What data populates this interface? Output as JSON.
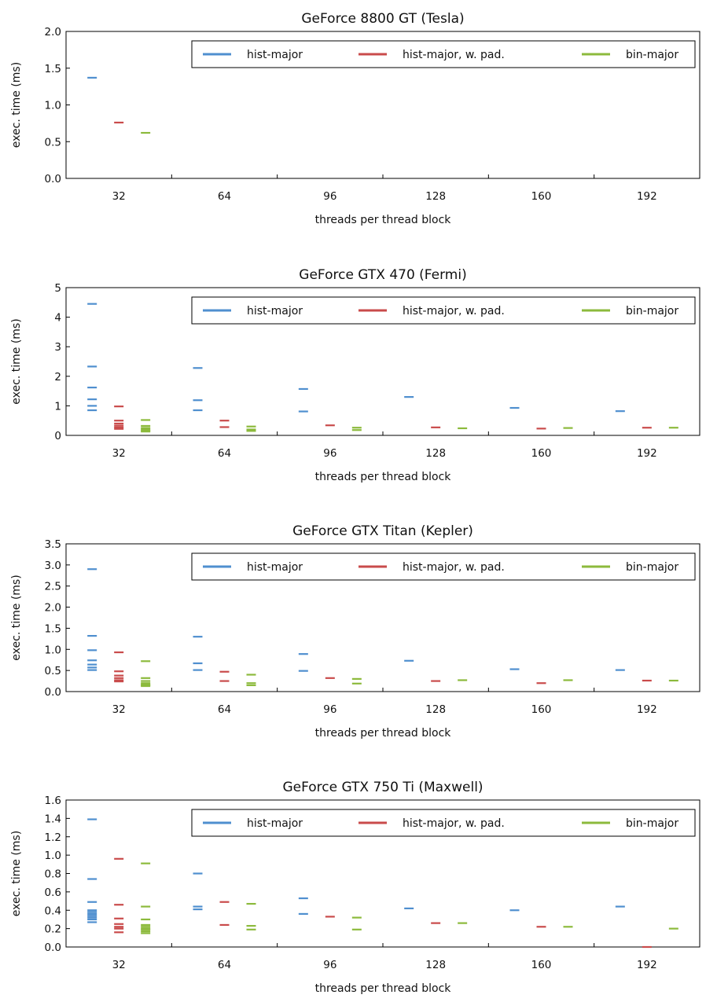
{
  "chart_data": [
    {
      "type": "scatter",
      "title": "GeForce 8800 GT (Tesla)",
      "xlabel": "threads per thread block",
      "ylabel": "exec. time (ms)",
      "x_ticks": [
        "32",
        "64",
        "96",
        "128",
        "160",
        "192"
      ],
      "ylim": [
        0,
        2.0
      ],
      "y_ticks": [
        "0.0",
        "0.5",
        "1.0",
        "1.5",
        "2.0"
      ],
      "grid": false,
      "legend_position": "top-right",
      "series": [
        {
          "name": "hist-major",
          "color": "#4f8fcf",
          "points": [
            [
              32,
              1.37
            ]
          ]
        },
        {
          "name": "hist-major, w. pad.",
          "color": "#c94b4b",
          "points": [
            [
              32,
              0.76
            ]
          ]
        },
        {
          "name": "bin-major",
          "color": "#8cba3c",
          "points": [
            [
              32,
              0.62
            ]
          ]
        }
      ]
    },
    {
      "type": "scatter",
      "title": "GeForce GTX 470 (Fermi)",
      "xlabel": "threads per thread block",
      "ylabel": "exec. time (ms)",
      "x_ticks": [
        "32",
        "64",
        "96",
        "128",
        "160",
        "192"
      ],
      "ylim": [
        0,
        5
      ],
      "y_ticks": [
        "0",
        "1",
        "2",
        "3",
        "4",
        "5"
      ],
      "grid": false,
      "legend_position": "top-right",
      "series": [
        {
          "name": "hist-major",
          "color": "#4f8fcf",
          "points": [
            [
              32,
              4.45
            ],
            [
              32,
              2.33
            ],
            [
              32,
              1.62
            ],
            [
              32,
              1.22
            ],
            [
              32,
              1.0
            ],
            [
              32,
              0.85
            ],
            [
              64,
              2.28
            ],
            [
              64,
              1.19
            ],
            [
              64,
              0.85
            ],
            [
              96,
              1.57
            ],
            [
              96,
              0.81
            ],
            [
              128,
              1.3
            ],
            [
              160,
              0.93
            ],
            [
              192,
              0.82
            ]
          ]
        },
        {
          "name": "hist-major, w. pad.",
          "color": "#c94b4b",
          "points": [
            [
              32,
              0.98
            ],
            [
              32,
              0.5
            ],
            [
              32,
              0.4
            ],
            [
              32,
              0.33
            ],
            [
              32,
              0.27
            ],
            [
              32,
              0.22
            ],
            [
              64,
              0.5
            ],
            [
              64,
              0.28
            ],
            [
              96,
              0.34
            ],
            [
              128,
              0.27
            ],
            [
              160,
              0.23
            ],
            [
              192,
              0.26
            ]
          ]
        },
        {
          "name": "bin-major",
          "color": "#8cba3c",
          "points": [
            [
              32,
              0.52
            ],
            [
              32,
              0.32
            ],
            [
              32,
              0.25
            ],
            [
              32,
              0.2
            ],
            [
              32,
              0.16
            ],
            [
              32,
              0.13
            ],
            [
              64,
              0.3
            ],
            [
              64,
              0.2
            ],
            [
              64,
              0.15
            ],
            [
              96,
              0.26
            ],
            [
              96,
              0.18
            ],
            [
              128,
              0.24
            ],
            [
              160,
              0.25
            ],
            [
              192,
              0.26
            ]
          ]
        }
      ]
    },
    {
      "type": "scatter",
      "title": "GeForce GTX Titan (Kepler)",
      "xlabel": "threads per thread block",
      "ylabel": "exec. time (ms)",
      "x_ticks": [
        "32",
        "64",
        "96",
        "128",
        "160",
        "192"
      ],
      "ylim": [
        0,
        3.5
      ],
      "y_ticks": [
        "0.0",
        "0.5",
        "1.0",
        "1.5",
        "2.0",
        "2.5",
        "3.0",
        "3.5"
      ],
      "grid": false,
      "legend_position": "top-right",
      "series": [
        {
          "name": "hist-major",
          "color": "#4f8fcf",
          "points": [
            [
              32,
              2.9
            ],
            [
              32,
              1.32
            ],
            [
              32,
              0.98
            ],
            [
              32,
              0.74
            ],
            [
              32,
              0.64
            ],
            [
              32,
              0.57
            ],
            [
              32,
              0.51
            ],
            [
              64,
              1.3
            ],
            [
              64,
              0.67
            ],
            [
              64,
              0.51
            ],
            [
              96,
              0.89
            ],
            [
              96,
              0.49
            ],
            [
              128,
              0.73
            ],
            [
              160,
              0.53
            ],
            [
              192,
              0.51
            ]
          ]
        },
        {
          "name": "hist-major, w. pad.",
          "color": "#c94b4b",
          "points": [
            [
              32,
              0.93
            ],
            [
              32,
              0.48
            ],
            [
              32,
              0.38
            ],
            [
              32,
              0.32
            ],
            [
              32,
              0.27
            ],
            [
              32,
              0.24
            ],
            [
              64,
              0.47
            ],
            [
              64,
              0.25
            ],
            [
              96,
              0.32
            ],
            [
              128,
              0.25
            ],
            [
              160,
              0.2
            ],
            [
              192,
              0.26
            ]
          ]
        },
        {
          "name": "bin-major",
          "color": "#8cba3c",
          "points": [
            [
              32,
              0.72
            ],
            [
              32,
              0.32
            ],
            [
              32,
              0.25
            ],
            [
              32,
              0.2
            ],
            [
              32,
              0.17
            ],
            [
              32,
              0.15
            ],
            [
              32,
              0.13
            ],
            [
              64,
              0.4
            ],
            [
              64,
              0.2
            ],
            [
              64,
              0.15
            ],
            [
              96,
              0.3
            ],
            [
              96,
              0.19
            ],
            [
              128,
              0.27
            ],
            [
              160,
              0.27
            ],
            [
              192,
              0.26
            ]
          ]
        }
      ]
    },
    {
      "type": "scatter",
      "title": "GeForce GTX 750 Ti (Maxwell)",
      "xlabel": "threads per thread block",
      "ylabel": "exec. time (ms)",
      "x_ticks": [
        "32",
        "64",
        "96",
        "128",
        "160",
        "192"
      ],
      "ylim": [
        0,
        1.6
      ],
      "y_ticks": [
        "0.0",
        "0.2",
        "0.4",
        "0.6",
        "0.8",
        "1.0",
        "1.2",
        "1.4",
        "1.6"
      ],
      "grid": false,
      "legend_position": "top-right",
      "series": [
        {
          "name": "hist-major",
          "color": "#4f8fcf",
          "points": [
            [
              32,
              1.39
            ],
            [
              32,
              0.74
            ],
            [
              32,
              0.49
            ],
            [
              32,
              0.4
            ],
            [
              32,
              0.38
            ],
            [
              32,
              0.36
            ],
            [
              32,
              0.34
            ],
            [
              32,
              0.32
            ],
            [
              32,
              0.3
            ],
            [
              32,
              0.27
            ],
            [
              64,
              0.8
            ],
            [
              64,
              0.44
            ],
            [
              64,
              0.41
            ],
            [
              96,
              0.53
            ],
            [
              96,
              0.36
            ],
            [
              128,
              0.42
            ],
            [
              160,
              0.4
            ],
            [
              192,
              0.44
            ]
          ]
        },
        {
          "name": "hist-major, w. pad.",
          "color": "#c94b4b",
          "points": [
            [
              32,
              0.96
            ],
            [
              32,
              0.46
            ],
            [
              32,
              0.31
            ],
            [
              32,
              0.25
            ],
            [
              32,
              0.22
            ],
            [
              32,
              0.2
            ],
            [
              32,
              0.16
            ],
            [
              64,
              0.49
            ],
            [
              64,
              0.24
            ],
            [
              96,
              0.33
            ],
            [
              128,
              0.26
            ],
            [
              160,
              0.22
            ],
            [
              192,
              0.0
            ]
          ]
        },
        {
          "name": "bin-major",
          "color": "#8cba3c",
          "points": [
            [
              32,
              0.91
            ],
            [
              32,
              0.44
            ],
            [
              32,
              0.3
            ],
            [
              32,
              0.24
            ],
            [
              32,
              0.22
            ],
            [
              32,
              0.2
            ],
            [
              32,
              0.19
            ],
            [
              32,
              0.17
            ],
            [
              32,
              0.15
            ],
            [
              64,
              0.47
            ],
            [
              64,
              0.23
            ],
            [
              64,
              0.19
            ],
            [
              96,
              0.32
            ],
            [
              96,
              0.19
            ],
            [
              128,
              0.26
            ],
            [
              160,
              0.22
            ],
            [
              192,
              0.2
            ]
          ]
        }
      ]
    }
  ]
}
